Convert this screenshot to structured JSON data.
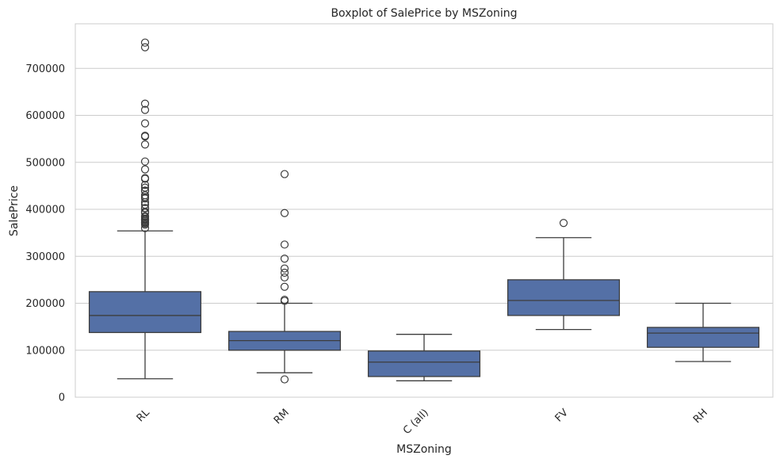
{
  "chart_data": {
    "type": "boxplot",
    "title": "Boxplot of SalePrice by MSZoning",
    "xlabel": "MSZoning",
    "ylabel": "SalePrice",
    "ylim": [
      0,
      795000
    ],
    "yticks": [
      0,
      100000,
      200000,
      300000,
      400000,
      500000,
      600000,
      700000
    ],
    "grid": "horizontal",
    "tick_rotation": 45,
    "box_color": "#5470a6",
    "line_color": "#3d3d3d",
    "categories": [
      "RL",
      "RM",
      "C (all)",
      "FV",
      "RH"
    ],
    "boxes": [
      {
        "category": "RL",
        "whisker_low": 39300,
        "q1": 137700,
        "median": 174000,
        "q3": 224700,
        "whisker_high": 354000,
        "outliers": [
          755000,
          745000,
          625000,
          611657,
          582933,
          556581,
          555000,
          538000,
          501837,
          485000,
          466500,
          465000,
          451950,
          446261,
          440000,
          438780,
          430000,
          426000,
          423000,
          415298,
          410000,
          402861,
          402000,
          395000,
          394617,
          392500,
          385000,
          383970,
          380000,
          378500,
          377500,
          377426,
          375000,
          372500,
          372402,
          370878,
          369900,
          367294,
          360000
        ]
      },
      {
        "category": "RM",
        "whisker_low": 52000,
        "q1": 100000,
        "median": 120500,
        "q3": 140000,
        "whisker_high": 200000,
        "outliers": [
          475000,
          392000,
          325000,
          295000,
          274000,
          265000,
          255000,
          235000,
          207500,
          205000,
          37900
        ]
      },
      {
        "category": "C (all)",
        "whisker_low": 34900,
        "q1": 43998,
        "median": 74700,
        "q3": 98332,
        "whisker_high": 133900,
        "outliers": []
      },
      {
        "category": "FV",
        "whisker_low": 144152,
        "q1": 174000,
        "median": 205950,
        "q3": 250000,
        "whisker_high": 339750,
        "outliers": [
          370967
        ]
      },
      {
        "category": "RH",
        "whisker_low": 76000,
        "q1": 106150,
        "median": 136500,
        "q3": 148608,
        "whisker_high": 200000,
        "outliers": []
      }
    ]
  }
}
